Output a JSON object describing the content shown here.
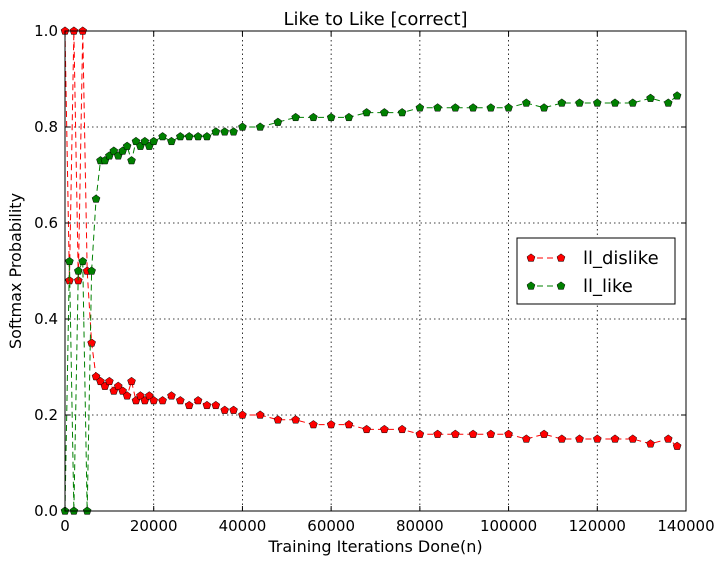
{
  "chart_data": {
    "type": "line",
    "title": "Like to Like [correct]",
    "xlabel": "Training Iterations Done(n)",
    "ylabel": "Softmax Probability",
    "xlim": [
      0,
      140000
    ],
    "ylim": [
      0,
      1.0
    ],
    "xticks": [
      0,
      20000,
      40000,
      60000,
      80000,
      100000,
      120000,
      140000
    ],
    "xtick_labels": [
      "0",
      "20000",
      "40000",
      "60000",
      "80000",
      "100000",
      "120000",
      "140000"
    ],
    "yticks": [
      0,
      0.2,
      0.4,
      0.6,
      0.8,
      1.0
    ],
    "ytick_labels": [
      "0.0",
      "0.2",
      "0.4",
      "0.6",
      "0.8",
      "1.0"
    ],
    "grid": true,
    "legend_position": "center-right",
    "marker": "pentagon",
    "line_style": "dashed",
    "series": [
      {
        "name": "ll_dislike",
        "color": "#ff0000",
        "x": [
          0,
          1000,
          2000,
          3000,
          4000,
          5000,
          6000,
          7000,
          8000,
          9000,
          10000,
          11000,
          12000,
          13000,
          14000,
          15000,
          16000,
          17000,
          18000,
          19000,
          20000,
          22000,
          24000,
          26000,
          28000,
          30000,
          32000,
          34000,
          36000,
          38000,
          40000,
          44000,
          48000,
          52000,
          56000,
          60000,
          64000,
          68000,
          72000,
          76000,
          80000,
          84000,
          88000,
          92000,
          96000,
          100000,
          104000,
          108000,
          112000,
          116000,
          120000,
          124000,
          128000,
          132000,
          136000,
          138000
        ],
        "values": [
          1.0,
          0.48,
          1.0,
          0.48,
          1.0,
          0.5,
          0.35,
          0.28,
          0.27,
          0.26,
          0.27,
          0.25,
          0.26,
          0.25,
          0.24,
          0.27,
          0.23,
          0.24,
          0.23,
          0.24,
          0.23,
          0.23,
          0.24,
          0.23,
          0.22,
          0.23,
          0.22,
          0.22,
          0.21,
          0.21,
          0.2,
          0.2,
          0.19,
          0.19,
          0.18,
          0.18,
          0.18,
          0.17,
          0.17,
          0.17,
          0.16,
          0.16,
          0.16,
          0.16,
          0.16,
          0.16,
          0.15,
          0.16,
          0.15,
          0.15,
          0.15,
          0.15,
          0.15,
          0.14,
          0.15,
          0.135
        ]
      },
      {
        "name": "ll_like",
        "color": "#008000",
        "x": [
          0,
          1000,
          2000,
          3000,
          4000,
          5000,
          6000,
          7000,
          8000,
          9000,
          10000,
          11000,
          12000,
          13000,
          14000,
          15000,
          16000,
          17000,
          18000,
          19000,
          20000,
          22000,
          24000,
          26000,
          28000,
          30000,
          32000,
          34000,
          36000,
          38000,
          40000,
          44000,
          48000,
          52000,
          56000,
          60000,
          64000,
          68000,
          72000,
          76000,
          80000,
          84000,
          88000,
          92000,
          96000,
          100000,
          104000,
          108000,
          112000,
          116000,
          120000,
          124000,
          128000,
          132000,
          136000,
          138000
        ],
        "values": [
          0.0,
          0.52,
          0.0,
          0.5,
          0.52,
          0.0,
          0.5,
          0.65,
          0.73,
          0.73,
          0.74,
          0.75,
          0.74,
          0.75,
          0.76,
          0.73,
          0.77,
          0.76,
          0.77,
          0.76,
          0.77,
          0.78,
          0.77,
          0.78,
          0.78,
          0.78,
          0.78,
          0.79,
          0.79,
          0.79,
          0.8,
          0.8,
          0.81,
          0.82,
          0.82,
          0.82,
          0.82,
          0.83,
          0.83,
          0.83,
          0.84,
          0.84,
          0.84,
          0.84,
          0.84,
          0.84,
          0.85,
          0.84,
          0.85,
          0.85,
          0.85,
          0.85,
          0.85,
          0.86,
          0.85,
          0.865
        ]
      }
    ]
  }
}
